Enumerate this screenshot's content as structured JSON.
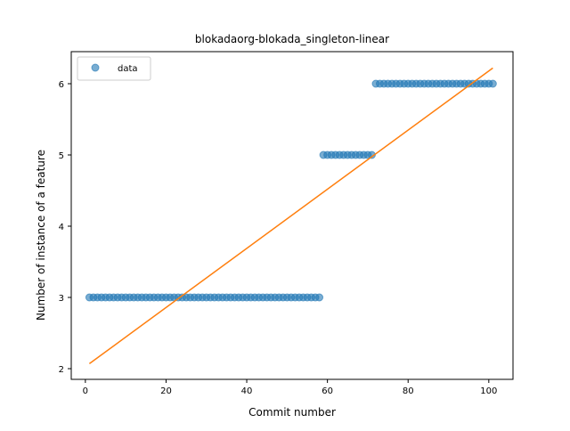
{
  "chart_data": {
    "type": "scatter",
    "title": "blokadaorg-blokada_singleton-linear",
    "xlabel": "Commit number",
    "ylabel": "Number of instance of a feature",
    "xlim": [
      -3.5,
      106
    ],
    "ylim": [
      1.85,
      6.45
    ],
    "xticks": [
      0,
      20,
      40,
      60,
      80,
      100
    ],
    "yticks": [
      2,
      3,
      4,
      5,
      6
    ],
    "grid": false,
    "legend": {
      "position": "top-left",
      "entries": [
        "data"
      ]
    },
    "series": [
      {
        "name": "data",
        "kind": "points",
        "color": "#1f77b4",
        "alpha": 0.6,
        "segments": [
          {
            "x_from": 1,
            "x_to": 58,
            "y": 3
          },
          {
            "x_from": 59,
            "x_to": 71,
            "y": 5
          },
          {
            "x_from": 72,
            "x_to": 101,
            "y": 6
          }
        ]
      },
      {
        "kind": "line",
        "color": "#ff7f0e",
        "x": [
          1,
          101
        ],
        "y": [
          2.07,
          6.22
        ]
      }
    ]
  }
}
